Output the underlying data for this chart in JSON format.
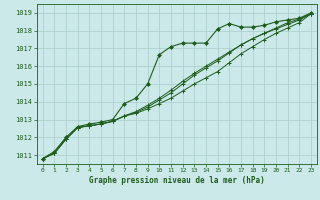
{
  "bg_color": "#cbe9e9",
  "plot_bg_color": "#cbe9e9",
  "grid_color": "#aacccc",
  "line_color": "#1e5c1e",
  "text_color": "#1e5c1e",
  "xlabel": "Graphe pression niveau de la mer (hPa)",
  "ylim": [
    1010.5,
    1019.5
  ],
  "xlim": [
    -0.5,
    23.5
  ],
  "yticks": [
    1011,
    1012,
    1013,
    1014,
    1015,
    1016,
    1017,
    1018,
    1019
  ],
  "xticks": [
    0,
    1,
    2,
    3,
    4,
    5,
    6,
    7,
    8,
    9,
    10,
    11,
    12,
    13,
    14,
    15,
    16,
    17,
    18,
    19,
    20,
    21,
    22,
    23
  ],
  "series1": [
    1010.8,
    1011.2,
    1012.0,
    1012.6,
    1012.75,
    1012.85,
    1013.0,
    1013.9,
    1014.2,
    1015.0,
    1016.65,
    1017.1,
    1017.3,
    1017.3,
    1017.3,
    1018.1,
    1018.4,
    1018.2,
    1018.2,
    1018.3,
    1018.5,
    1018.6,
    1018.7,
    1019.0
  ],
  "series2": [
    1010.8,
    1011.1,
    1011.9,
    1012.55,
    1012.65,
    1012.75,
    1012.9,
    1013.2,
    1013.35,
    1013.6,
    1013.9,
    1014.2,
    1014.6,
    1015.0,
    1015.35,
    1015.7,
    1016.2,
    1016.7,
    1017.1,
    1017.5,
    1017.85,
    1018.15,
    1018.45,
    1018.95
  ],
  "series3": [
    1010.8,
    1011.1,
    1011.9,
    1012.55,
    1012.65,
    1012.75,
    1012.9,
    1013.2,
    1013.4,
    1013.7,
    1014.1,
    1014.5,
    1015.0,
    1015.5,
    1015.9,
    1016.3,
    1016.75,
    1017.2,
    1017.55,
    1017.85,
    1018.1,
    1018.35,
    1018.6,
    1018.95
  ],
  "series4": [
    1010.8,
    1011.1,
    1011.9,
    1012.55,
    1012.65,
    1012.75,
    1012.9,
    1013.2,
    1013.45,
    1013.8,
    1014.2,
    1014.65,
    1015.15,
    1015.6,
    1016.0,
    1016.4,
    1016.8,
    1017.2,
    1017.55,
    1017.85,
    1018.15,
    1018.45,
    1018.65,
    1018.95
  ]
}
